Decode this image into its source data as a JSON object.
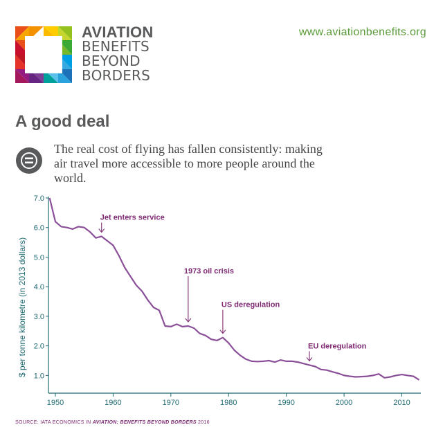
{
  "header": {
    "brand_line1": "AVIATION",
    "brand_line2": "BENEFITS",
    "brand_line3": "BEYOND",
    "brand_line4": "BORDERS",
    "url": "www.aviationbenefits.org"
  },
  "title": "A good deal",
  "subtitle": "The real cost of flying has fallen consistently: making air travel more accessible to more people around the world.",
  "icon": "equals-circle-icon",
  "colors": {
    "line": "#8a4f98",
    "axis": "#1f6b73",
    "annotation": "#7f2b74",
    "url": "#5a9a3a",
    "title": "#58595b"
  },
  "source": {
    "prefix": "SOURCE:  IATA ECONOMICS IN ",
    "italic": "AVIATION: BENEFITS BEYOND BORDERS",
    "suffix": " 2016"
  },
  "chart_data": {
    "type": "line",
    "title": "",
    "xlabel": "",
    "ylabel": "$ per tonne kilometre (in 2013 dollars)",
    "xlim": [
      1950,
      2013
    ],
    "ylim": [
      0.4,
      7.0
    ],
    "xticks": [
      1950,
      1960,
      1970,
      1980,
      1990,
      2000,
      2010
    ],
    "xtick_labels": [
      "1950",
      "1960",
      "1970",
      "1980",
      "1990",
      "2000",
      "2010"
    ],
    "yticks": [
      1.0,
      2.0,
      3.0,
      4.0,
      5.0,
      6.0,
      7.0
    ],
    "ytick_labels": [
      "1.0",
      "2.0",
      "3.0",
      "4.0",
      "5.0",
      "6.0",
      "7.0"
    ],
    "grid": false,
    "series": [
      {
        "x": [
          1949,
          1950,
          1951,
          1952,
          1953,
          1954,
          1955,
          1956,
          1957,
          1958,
          1959,
          1960,
          1961,
          1962,
          1963,
          1964,
          1965,
          1966,
          1967,
          1968,
          1969,
          1970,
          1971,
          1972,
          1973,
          1974,
          1975,
          1976,
          1977,
          1978,
          1979,
          1980,
          1981,
          1982,
          1983,
          1984,
          1985,
          1986,
          1987,
          1988,
          1989,
          1990,
          1991,
          1992,
          1993,
          1994,
          1995,
          1996,
          1997,
          1998,
          1999,
          2000,
          2001,
          2002,
          2003,
          2004,
          2005,
          2006,
          2007,
          2008,
          2009,
          2010,
          2011,
          2012,
          2013
        ],
        "values": [
          7.0,
          6.2,
          6.03,
          6.0,
          5.95,
          6.03,
          6.0,
          5.85,
          5.65,
          5.7,
          5.55,
          5.4,
          5.05,
          4.65,
          4.35,
          4.05,
          3.85,
          3.55,
          3.3,
          3.2,
          2.67,
          2.65,
          2.73,
          2.65,
          2.67,
          2.6,
          2.42,
          2.35,
          2.22,
          2.18,
          2.28,
          2.1,
          1.85,
          1.68,
          1.55,
          1.48,
          1.47,
          1.48,
          1.5,
          1.45,
          1.52,
          1.48,
          1.48,
          1.45,
          1.4,
          1.35,
          1.3,
          1.2,
          1.18,
          1.12,
          1.07,
          1.0,
          0.97,
          0.95,
          0.96,
          0.97,
          1.0,
          1.05,
          0.92,
          0.95,
          1.0,
          1.03,
          1.0,
          0.97,
          0.85
        ]
      }
    ],
    "annotations": [
      {
        "text": "Jet enters service",
        "x": 1958,
        "y": 5.7
      },
      {
        "text": "1973 oil crisis",
        "x": 1973,
        "y": 2.67
      },
      {
        "text": "US deregulation",
        "x": 1979,
        "y": 2.28
      },
      {
        "text": "EU deregulation",
        "x": 1994,
        "y": 1.35
      }
    ]
  }
}
